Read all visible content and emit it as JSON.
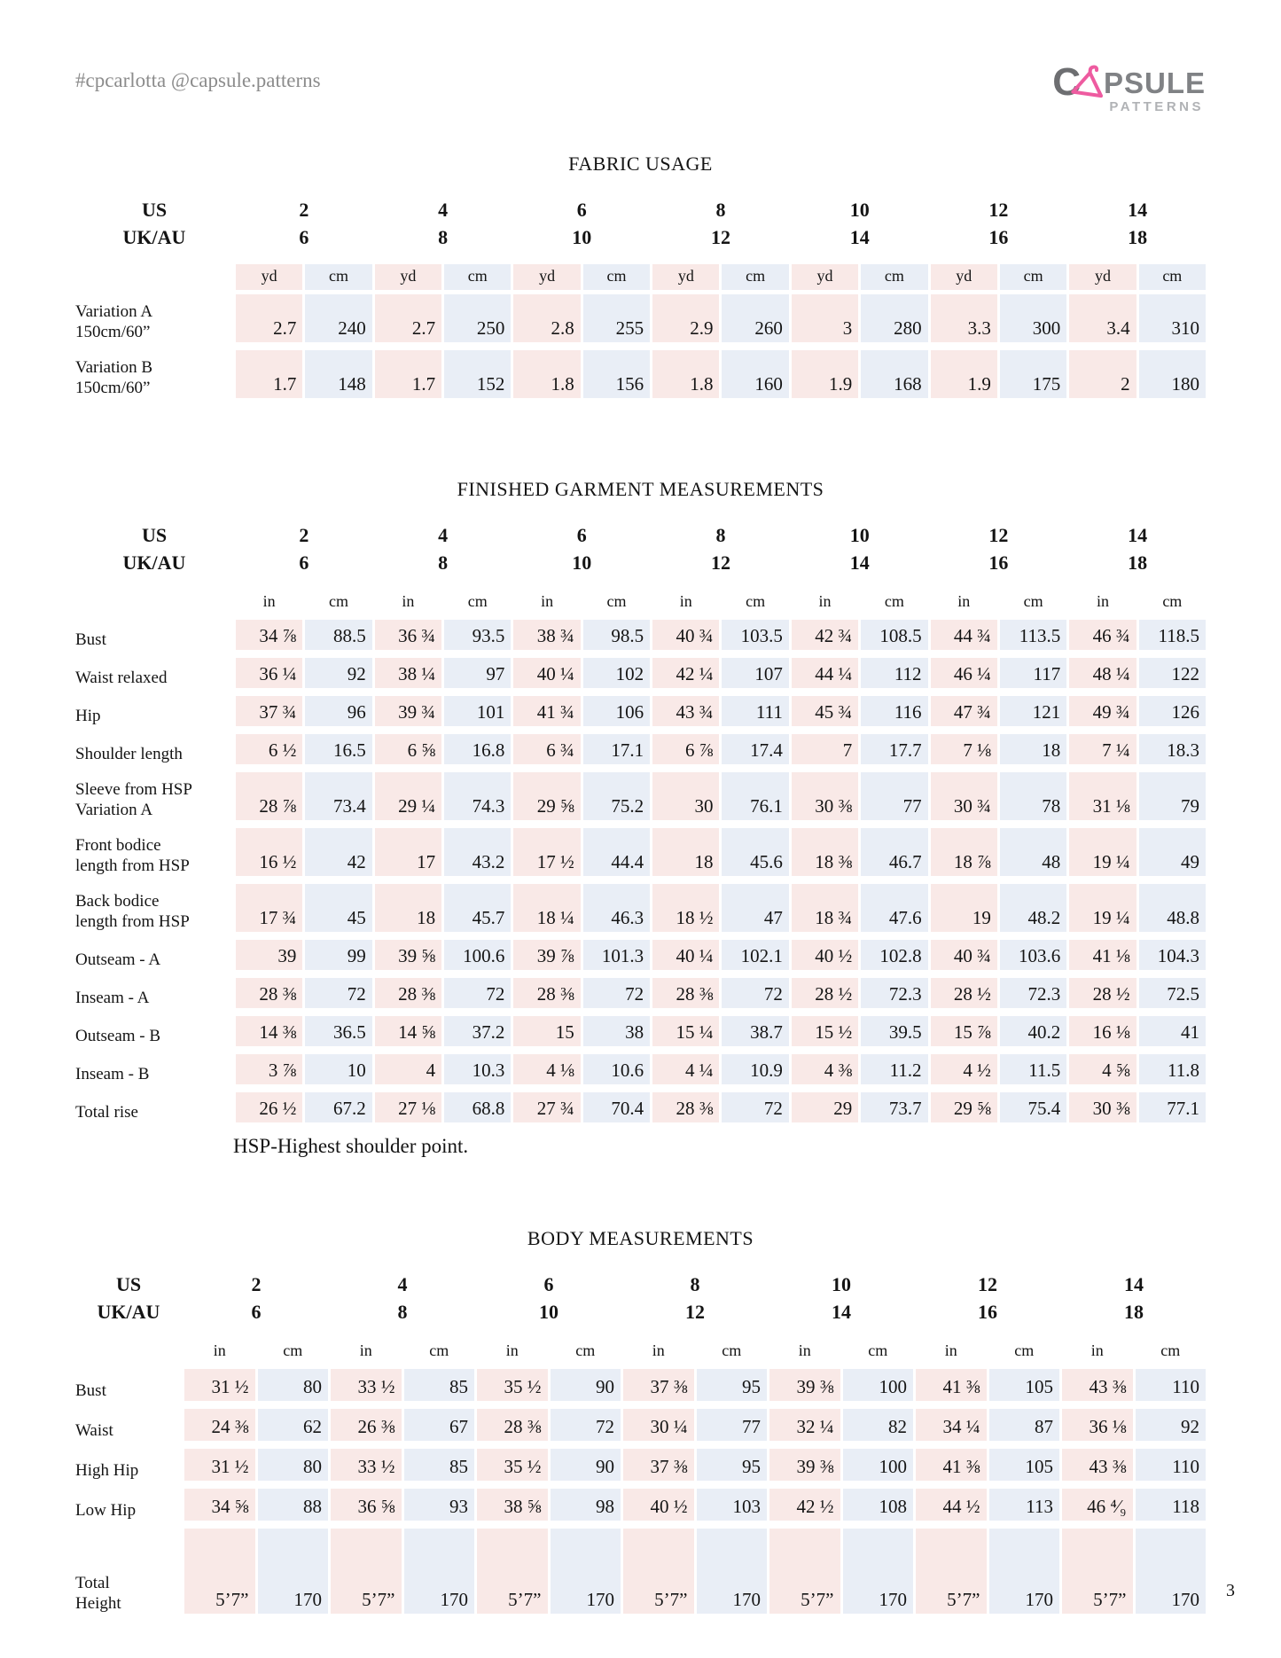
{
  "page": {
    "hashtag": "#cpcarlotta @capsule.patterns",
    "page_number": "3"
  },
  "logo": {
    "c": "C",
    "rest": "PSULE",
    "sub": "PATTERNS",
    "pink": "#ee5ba0",
    "gray": "#6d6e71"
  },
  "colors": {
    "pink_cell": "#f9e9e7",
    "blue_cell": "#e9eef6"
  },
  "size_header": {
    "us_label": "US",
    "ukau_label": "UK/AU",
    "us_sizes": [
      "2",
      "4",
      "6",
      "8",
      "10",
      "12",
      "14"
    ],
    "ukau_sizes": [
      "6",
      "8",
      "10",
      "12",
      "14",
      "16",
      "18"
    ]
  },
  "fabric_usage": {
    "title": "FABRIC USAGE",
    "units": [
      "yd",
      "cm"
    ],
    "rows": [
      {
        "label": [
          "Variation A",
          "150cm/60”"
        ],
        "values": [
          "2.7",
          "240",
          "2.7",
          "250",
          "2.8",
          "255",
          "2.9",
          "260",
          "3",
          "280",
          "3.3",
          "300",
          "3.4",
          "310"
        ]
      },
      {
        "label": [
          "Variation B",
          "150cm/60”"
        ],
        "values": [
          "1.7",
          "148",
          "1.7",
          "152",
          "1.8",
          "156",
          "1.8",
          "160",
          "1.9",
          "168",
          "1.9",
          "175",
          "2",
          "180"
        ]
      }
    ]
  },
  "finished_garment": {
    "title": "FINISHED GARMENT MEASUREMENTS",
    "units": [
      "in",
      "cm"
    ],
    "note": "HSP-Highest shoulder point.",
    "rows": [
      {
        "label": [
          "Bust"
        ],
        "values": [
          "34 ⅞",
          "88.5",
          "36 ¾",
          "93.5",
          "38 ¾",
          "98.5",
          "40 ¾",
          "103.5",
          "42 ¾",
          "108.5",
          "44 ¾",
          "113.5",
          "46 ¾",
          "118.5"
        ]
      },
      {
        "label": [
          "Waist relaxed"
        ],
        "values": [
          "36 ¼",
          "92",
          "38 ¼",
          "97",
          "40 ¼",
          "102",
          "42 ¼",
          "107",
          "44 ¼",
          "112",
          "46 ¼",
          "117",
          "48 ¼",
          "122"
        ]
      },
      {
        "label": [
          "Hip"
        ],
        "values": [
          "37 ¾",
          "96",
          "39 ¾",
          "101",
          "41 ¾",
          "106",
          "43 ¾",
          "111",
          "45 ¾",
          "116",
          "47 ¾",
          "121",
          "49 ¾",
          "126"
        ]
      },
      {
        "label": [
          "Shoulder length"
        ],
        "values": [
          "6 ½",
          "16.5",
          "6 ⅝",
          "16.8",
          "6 ¾",
          "17.1",
          "6 ⅞",
          "17.4",
          "7",
          "17.7",
          "7 ⅛",
          "18",
          "7 ¼",
          "18.3"
        ]
      },
      {
        "label": [
          "Sleeve from HSP",
          "Variation A"
        ],
        "values": [
          "28 ⅞",
          "73.4",
          "29 ¼",
          "74.3",
          "29 ⅝",
          "75.2",
          "30",
          "76.1",
          "30 ⅜",
          "77",
          "30 ¾",
          "78",
          "31 ⅛",
          "79"
        ]
      },
      {
        "label": [
          "Front bodice",
          "length from HSP"
        ],
        "values": [
          "16 ½",
          "42",
          "17",
          "43.2",
          "17 ½",
          "44.4",
          "18",
          "45.6",
          "18 ⅜",
          "46.7",
          "18 ⅞",
          "48",
          "19 ¼",
          "49"
        ]
      },
      {
        "label": [
          "Back bodice",
          "length from HSP"
        ],
        "values": [
          "17 ¾",
          "45",
          "18",
          "45.7",
          "18 ¼",
          "46.3",
          "18 ½",
          "47",
          "18 ¾",
          "47.6",
          "19",
          "48.2",
          "19 ¼",
          "48.8"
        ]
      },
      {
        "label": [
          "Outseam - A"
        ],
        "values": [
          "39",
          "99",
          "39 ⅝",
          "100.6",
          "39 ⅞",
          "101.3",
          "40 ¼",
          "102.1",
          "40 ½",
          "102.8",
          "40 ¾",
          "103.6",
          "41 ⅛",
          "104.3"
        ]
      },
      {
        "label": [
          "Inseam - A"
        ],
        "values": [
          "28 ⅜",
          "72",
          "28 ⅜",
          "72",
          "28 ⅜",
          "72",
          "28 ⅜",
          "72",
          "28 ½",
          "72.3",
          "28 ½",
          "72.3",
          "28 ½",
          "72.5"
        ]
      },
      {
        "label": [
          "Outseam - B"
        ],
        "values": [
          "14 ⅜",
          "36.5",
          "14 ⅝",
          "37.2",
          "15",
          "38",
          "15 ¼",
          "38.7",
          "15 ½",
          "39.5",
          "15 ⅞",
          "40.2",
          "16 ⅛",
          "41"
        ]
      },
      {
        "label": [
          "Inseam - B"
        ],
        "values": [
          "3 ⅞",
          "10",
          "4",
          "10.3",
          "4 ⅛",
          "10.6",
          "4 ¼",
          "10.9",
          "4 ⅜",
          "11.2",
          "4 ½",
          "11.5",
          "4 ⅝",
          "11.8"
        ]
      },
      {
        "label": [
          "Total rise"
        ],
        "values": [
          "26 ½",
          "67.2",
          "27 ⅛",
          "68.8",
          "27 ¾",
          "70.4",
          "28 ⅜",
          "72",
          "29",
          "73.7",
          "29 ⅝",
          "75.4",
          "30 ⅜",
          "77.1"
        ]
      }
    ]
  },
  "body_measurements": {
    "title": "BODY MEASUREMENTS",
    "units": [
      "in",
      "cm"
    ],
    "rows": [
      {
        "label": [
          "Bust"
        ],
        "values": [
          "31 ½",
          "80",
          "33 ½",
          "85",
          "35 ½",
          "90",
          "37 ⅜",
          "95",
          "39 ⅜",
          "100",
          "41 ⅜",
          "105",
          "43 ⅜",
          "110"
        ]
      },
      {
        "label": [
          "Waist"
        ],
        "values": [
          "24 ⅜",
          "62",
          "26 ⅜",
          "67",
          "28 ⅜",
          "72",
          "30 ¼",
          "77",
          "32 ¼",
          "82",
          "34 ¼",
          "87",
          "36 ⅛",
          "92"
        ]
      },
      {
        "label": [
          "High Hip"
        ],
        "values": [
          "31 ½",
          "80",
          "33 ½",
          "85",
          "35 ½",
          "90",
          "37 ⅜",
          "95",
          "39 ⅜",
          "100",
          "41 ⅜",
          "105",
          "43 ⅜",
          "110"
        ]
      },
      {
        "label": [
          "Low Hip"
        ],
        "values": [
          "34 ⅝",
          "88",
          "36 ⅝",
          "93",
          "38 ⅝",
          "98",
          "40 ½",
          "103",
          "42 ½",
          "108",
          "44 ½",
          "113",
          "46 ⁴⁄₉",
          "118"
        ]
      },
      {
        "label": [
          "Total",
          "Height"
        ],
        "values": [
          "5’7”",
          "170",
          "5’7”",
          "170",
          "5’7”",
          "170",
          "5’7”",
          "170",
          "5’7”",
          "170",
          "5’7”",
          "170",
          "5’7”",
          "170"
        ]
      }
    ]
  }
}
